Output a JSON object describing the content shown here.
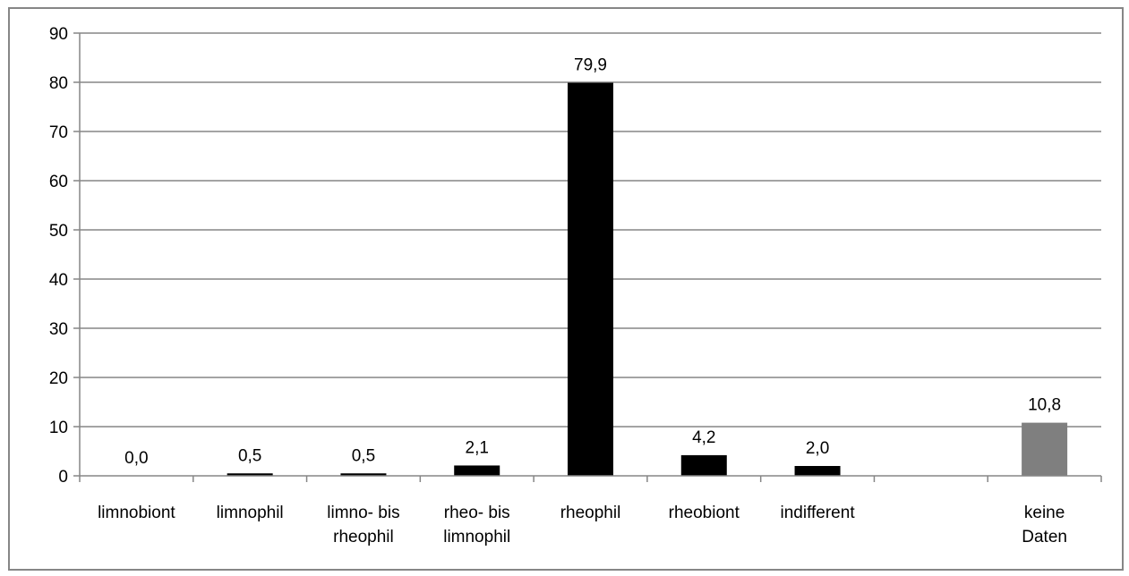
{
  "chart_data": {
    "type": "bar",
    "title": "",
    "xlabel": "",
    "ylabel": "",
    "ylim": [
      0,
      90
    ],
    "yticks": [
      0,
      10,
      20,
      30,
      40,
      50,
      60,
      70,
      80,
      90
    ],
    "grid": true,
    "legend": "none",
    "categories": [
      [
        "limnobiont"
      ],
      [
        "limnophil"
      ],
      [
        "limno- bis",
        "rheophil"
      ],
      [
        "rheo- bis",
        "limnophil"
      ],
      [
        "rheophil"
      ],
      [
        "rheobiont"
      ],
      [
        "indifferent"
      ],
      [
        ""
      ],
      [
        "keine",
        "Daten"
      ]
    ],
    "values": [
      0.0,
      0.5,
      0.5,
      2.1,
      79.9,
      4.2,
      2.0,
      null,
      10.8
    ],
    "data_labels": [
      "0,0",
      "0,5",
      "0,5",
      "2,1",
      "79,9",
      "4,2",
      "2,0",
      "",
      "10,8"
    ],
    "colors": [
      "#000000",
      "#000000",
      "#000000",
      "#000000",
      "#000000",
      "#000000",
      "#000000",
      "#000000",
      "#7f7f7f"
    ],
    "grid_color": "#868686",
    "axis_color": "#868686"
  }
}
